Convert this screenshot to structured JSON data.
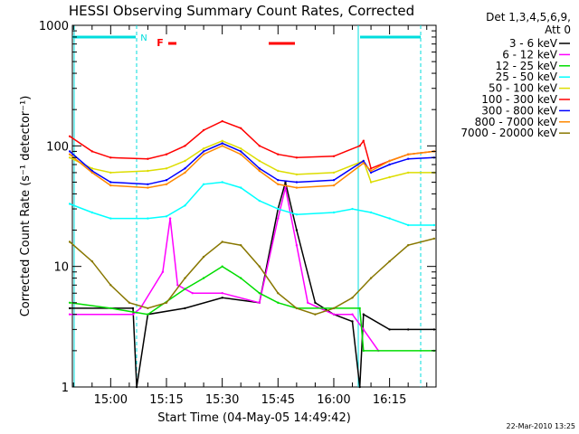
{
  "chart_data": {
    "type": "line",
    "title": "HESSI Observing Summary Count Rates, Corrected",
    "xlabel": "Start Time (04-May-05 14:49:42)",
    "ylabel": "Corrected Count Rate (s⁻¹ detector⁻¹)",
    "y_scale": "log",
    "ylim": [
      1,
      1000
    ],
    "xlim": [
      "14:49:42",
      "16:27:30"
    ],
    "xticks": [
      "15:00",
      "15:15",
      "15:30",
      "15:45",
      "16:00",
      "16:15"
    ],
    "yticks": [
      "1",
      "10",
      "100",
      "1000"
    ],
    "legend": {
      "header": [
        "Det 1,3,4,5,6,9,",
        "Att 0"
      ],
      "placement": "right"
    },
    "footer": "22-Mar-2010 13:25",
    "flags": {
      "N": {
        "label": "N",
        "color": "#00dddd"
      },
      "F": {
        "label": "F",
        "color": "#ff0000"
      }
    },
    "series": [
      {
        "name": "3 - 6 keV",
        "color": "#000000",
        "x": [
          "14:49",
          "15:06",
          "15:07",
          "15:10",
          "15:20",
          "15:30",
          "15:40",
          "15:45",
          "15:47",
          "15:50",
          "15:55",
          "16:00",
          "16:05",
          "16:07",
          "16:08",
          "16:15",
          "16:20",
          "16:27"
        ],
        "values": [
          4.5,
          4.5,
          1.0,
          4.0,
          4.5,
          5.5,
          5.0,
          30,
          50,
          20,
          5.0,
          4.0,
          3.5,
          1.0,
          4.0,
          3.0,
          3.0,
          3.0
        ]
      },
      {
        "name": "6 - 12 keV",
        "color": "#ff00ff",
        "x": [
          "14:49",
          "15:06",
          "15:08",
          "15:14",
          "15:16",
          "15:18",
          "15:22",
          "15:30",
          "15:40",
          "15:45",
          "15:47",
          "15:50",
          "15:53",
          "16:00",
          "16:05",
          "16:08",
          "16:12"
        ],
        "values": [
          4.0,
          4.0,
          4.5,
          9.0,
          25,
          7.0,
          6.0,
          6.0,
          5.0,
          25,
          45,
          15,
          5.0,
          4.0,
          4.0,
          3.0,
          2.0
        ]
      },
      {
        "name": "12 - 25 keV",
        "color": "#00dd00",
        "x": [
          "14:49",
          "15:00",
          "15:10",
          "15:20",
          "15:25",
          "15:30",
          "15:35",
          "15:40",
          "15:45",
          "15:50",
          "16:00",
          "16:07",
          "16:08",
          "16:27"
        ],
        "values": [
          5.0,
          4.5,
          4.0,
          6.5,
          8.0,
          10,
          8.0,
          6.0,
          5.0,
          4.5,
          4.5,
          4.5,
          2.0,
          2.0
        ]
      },
      {
        "name": "25 - 50 keV",
        "color": "#00ffff",
        "x": [
          "14:49",
          "14:55",
          "15:00",
          "15:10",
          "15:15",
          "15:20",
          "15:25",
          "15:30",
          "15:35",
          "15:40",
          "15:45",
          "15:50",
          "16:00",
          "16:05",
          "16:10",
          "16:15",
          "16:20",
          "16:27"
        ],
        "values": [
          33,
          28,
          25,
          25,
          26,
          32,
          48,
          50,
          45,
          35,
          30,
          27,
          28,
          30,
          28,
          25,
          22,
          22
        ]
      },
      {
        "name": "50 - 100 keV",
        "color": "#dddd00",
        "x": [
          "14:49",
          "14:55",
          "15:00",
          "15:10",
          "15:15",
          "15:20",
          "15:25",
          "15:30",
          "15:35",
          "15:40",
          "15:45",
          "15:50",
          "16:00",
          "16:08",
          "16:10",
          "16:15",
          "16:20",
          "16:27"
        ],
        "values": [
          80,
          65,
          60,
          62,
          65,
          75,
          95,
          110,
          95,
          75,
          62,
          58,
          60,
          75,
          50,
          55,
          60,
          60
        ]
      },
      {
        "name": "100 - 300 keV",
        "color": "#ff0000",
        "x": [
          "14:49",
          "14:55",
          "15:00",
          "15:10",
          "15:15",
          "15:20",
          "15:25",
          "15:30",
          "15:35",
          "15:40",
          "15:45",
          "15:50",
          "16:00",
          "16:07",
          "16:08",
          "16:10",
          "16:15",
          "16:20",
          "16:27"
        ],
        "values": [
          120,
          90,
          80,
          78,
          85,
          100,
          135,
          160,
          140,
          100,
          85,
          80,
          82,
          100,
          110,
          65,
          75,
          85,
          90
        ]
      },
      {
        "name": "300 - 800 keV",
        "color": "#0000ff",
        "x": [
          "14:49",
          "14:55",
          "15:00",
          "15:10",
          "15:15",
          "15:20",
          "15:25",
          "15:30",
          "15:35",
          "15:40",
          "15:45",
          "15:50",
          "16:00",
          "16:08",
          "16:10",
          "16:15",
          "16:20",
          "16:27"
        ],
        "values": [
          90,
          62,
          50,
          48,
          52,
          65,
          90,
          105,
          90,
          65,
          52,
          50,
          52,
          75,
          60,
          70,
          78,
          80
        ]
      },
      {
        "name": "800 - 7000 keV",
        "color": "#ff8800",
        "x": [
          "14:49",
          "14:55",
          "15:00",
          "15:10",
          "15:15",
          "15:20",
          "15:25",
          "15:30",
          "15:35",
          "15:40",
          "15:45",
          "15:50",
          "16:00",
          "16:08",
          "16:10",
          "16:15",
          "16:20",
          "16:27"
        ],
        "values": [
          85,
          60,
          47,
          45,
          48,
          60,
          85,
          100,
          85,
          62,
          48,
          45,
          47,
          72,
          62,
          75,
          85,
          90
        ]
      },
      {
        "name": "7000 - 20000 keV",
        "color": "#887700",
        "x": [
          "14:49",
          "14:55",
          "15:00",
          "15:05",
          "15:10",
          "15:15",
          "15:20",
          "15:25",
          "15:30",
          "15:35",
          "15:40",
          "15:45",
          "15:50",
          "15:55",
          "16:00",
          "16:05",
          "16:10",
          "16:15",
          "16:20",
          "16:27"
        ],
        "values": [
          16,
          11,
          7,
          5,
          4.5,
          5,
          8,
          12,
          16,
          15,
          10,
          6,
          4.5,
          4,
          4.5,
          5.5,
          8,
          11,
          15,
          17
        ]
      }
    ]
  }
}
